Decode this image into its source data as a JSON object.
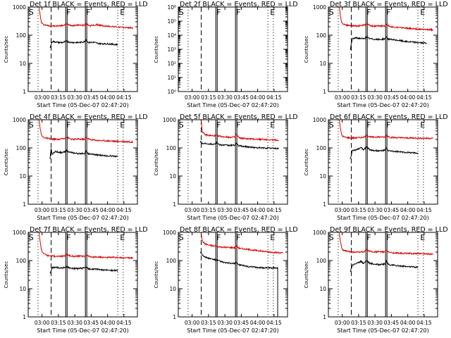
{
  "colors": {
    "events": "#000000",
    "lld": "#dd0000",
    "axes": "#000000",
    "background": "#ffffff"
  },
  "common": {
    "ylabel": "Counts/sec",
    "xlabel": "Start Time (05-Dec-07 02:47:20)",
    "xticks": [
      "03:00",
      "03:15",
      "03:30",
      "03:45",
      "04:00",
      "04:15"
    ],
    "xtick_minutes": [
      12.67,
      27.67,
      42.67,
      57.67,
      72.67,
      87.67
    ],
    "xlim_minutes": [
      0,
      100
    ],
    "yticks_standard": [
      "1",
      "10",
      "100",
      "1000"
    ],
    "marker_letters": {
      "start": "S",
      "flag": "F",
      "end": "E"
    }
  },
  "chart_data": [
    {
      "type": "line",
      "title": "Det 1f BLACK = Events, RED = LLD",
      "yscale": "log",
      "ylim": [
        1,
        1000
      ],
      "markers": {
        "S": 0.5,
        "dotted": [
          9,
          82,
          87
        ],
        "dashed": 21,
        "F": [
          35,
          53
        ],
        "E": 84
      },
      "series": [
        {
          "color": "red",
          "x": [
            10,
            11,
            12,
            13,
            15,
            17,
            20,
            25,
            33,
            35,
            40,
            47,
            52,
            53,
            57,
            63,
            70,
            77,
            82,
            85,
            88,
            92,
            96
          ],
          "y": [
            1000,
            500,
            290,
            250,
            235,
            225,
            215,
            210,
            225,
            250,
            220,
            230,
            225,
            255,
            215,
            235,
            210,
            205,
            195,
            190,
            188,
            185,
            183
          ]
        },
        {
          "color": "black",
          "x": [
            20,
            22,
            25,
            28,
            32,
            35,
            38,
            42,
            47,
            52,
            53,
            55,
            60,
            65,
            70,
            75,
            82
          ],
          "y": [
            35,
            60,
            58,
            55,
            55,
            62,
            56,
            55,
            55,
            60,
            70,
            55,
            56,
            50,
            50,
            49,
            46
          ]
        }
      ]
    },
    {
      "type": "line",
      "title": "Det 2f BLACK = Events, RED = LLD",
      "yscale": "log",
      "ylim": [
        1,
        1000000
      ],
      "yticks": [
        "10⁰",
        "10¹",
        "10²",
        "10³",
        "10⁴",
        "10⁵",
        "10⁶"
      ],
      "markers": {
        "S": 0.5,
        "dotted": [
          9,
          82,
          87
        ],
        "dashed": 21,
        "F": [
          35,
          53
        ],
        "E": 84
      },
      "series": []
    },
    {
      "type": "line",
      "title": "Det 3f BLACK = Events, RED = LLD",
      "yscale": "log",
      "ylim": [
        1,
        1000
      ],
      "markers": {
        "S": 0.5,
        "dotted": [
          9,
          82,
          87
        ],
        "dashed": 21,
        "F": [
          35,
          53
        ],
        "E": 84
      },
      "series": [
        {
          "color": "red",
          "x": [
            10,
            11,
            12,
            13,
            15,
            18,
            22,
            28,
            33,
            35,
            40,
            47,
            52,
            53,
            57,
            63,
            70,
            77,
            82,
            87,
            92,
            96
          ],
          "y": [
            1000,
            500,
            300,
            260,
            240,
            225,
            215,
            215,
            230,
            250,
            210,
            215,
            210,
            245,
            200,
            190,
            180,
            170,
            165,
            160,
            158,
            155
          ]
        },
        {
          "color": "black",
          "x": [
            20,
            22,
            25,
            28,
            32,
            35,
            38,
            42,
            47,
            52,
            53,
            55,
            60,
            65,
            70,
            75,
            82,
            90
          ],
          "y": [
            30,
            75,
            80,
            78,
            75,
            85,
            75,
            72,
            70,
            75,
            90,
            72,
            68,
            65,
            60,
            58,
            55,
            52
          ]
        }
      ]
    },
    {
      "type": "line",
      "title": "Det 4f BLACK = Events, RED = LLD",
      "yscale": "log",
      "ylim": [
        1,
        1000
      ],
      "markers": {
        "S": 0.5,
        "dotted": [
          9,
          82,
          87
        ],
        "dashed": 21,
        "F": [
          35,
          53
        ],
        "E": 84
      },
      "series": [
        {
          "color": "red",
          "x": [
            10,
            11,
            12,
            13,
            15,
            18,
            22,
            28,
            33,
            35,
            40,
            47,
            52,
            53,
            57,
            63,
            70,
            77,
            82,
            87,
            92,
            96
          ],
          "y": [
            1000,
            500,
            300,
            250,
            230,
            215,
            205,
            200,
            215,
            240,
            200,
            205,
            200,
            235,
            195,
            185,
            180,
            175,
            170,
            168,
            165,
            163
          ]
        },
        {
          "color": "black",
          "x": [
            20,
            21,
            22,
            25,
            28,
            32,
            35,
            38,
            42,
            47,
            52,
            53,
            55,
            60,
            65,
            70,
            75,
            82
          ],
          "y": [
            40,
            90,
            60,
            75,
            70,
            68,
            80,
            70,
            65,
            62,
            65,
            75,
            62,
            58,
            55,
            53,
            52,
            50
          ]
        }
      ]
    },
    {
      "type": "line",
      "title": "Det 5f BLACK = Events, RED = LLD",
      "yscale": "log",
      "ylim": [
        1,
        1000
      ],
      "markers": {
        "S": 0.5,
        "dotted": [
          9,
          82,
          87
        ],
        "dashed": 21,
        "F": [
          35,
          53
        ],
        "E": 84
      },
      "series": [
        {
          "color": "red",
          "x": [
            21,
            22,
            24,
            27,
            32,
            35,
            40,
            47,
            52,
            53,
            56,
            63,
            70,
            77,
            82,
            87,
            92
          ],
          "y": [
            900,
            380,
            300,
            280,
            265,
            275,
            250,
            240,
            240,
            300,
            225,
            210,
            205,
            200,
            195,
            190,
            188
          ]
        },
        {
          "color": "black",
          "x": [
            20,
            21,
            22,
            25,
            28,
            32,
            35,
            38,
            42,
            47,
            52,
            53,
            55,
            60,
            65,
            70,
            75,
            82,
            87,
            92
          ],
          "y": [
            160,
            170,
            140,
            145,
            140,
            135,
            150,
            130,
            125,
            122,
            125,
            145,
            120,
            112,
            108,
            102,
            100,
            98,
            97,
            95
          ]
        }
      ]
    },
    {
      "type": "line",
      "title": "Det 6f BLACK = Events, RED = LLD",
      "yscale": "log",
      "ylim": [
        1,
        1000
      ],
      "markers": {
        "S": 0.5,
        "dotted": [
          9,
          82,
          87
        ],
        "dashed": 21,
        "F": [
          35,
          53
        ],
        "E": 84
      },
      "series": [
        {
          "color": "red",
          "x": [
            10,
            11,
            12,
            13,
            15,
            18,
            22,
            28,
            33,
            35,
            40,
            47,
            52,
            53,
            57,
            63,
            70,
            77,
            82,
            87,
            92,
            96
          ],
          "y": [
            1000,
            500,
            300,
            260,
            240,
            230,
            225,
            230,
            240,
            270,
            240,
            245,
            240,
            275,
            235,
            230,
            225,
            225,
            222,
            220,
            220,
            220
          ]
        },
        {
          "color": "black",
          "x": [
            20,
            22,
            25,
            28,
            30,
            32,
            35,
            38,
            42,
            47,
            52,
            53,
            55,
            60,
            65,
            70,
            75,
            82
          ],
          "y": [
            40,
            80,
            85,
            95,
            100,
            85,
            110,
            85,
            80,
            78,
            82,
            100,
            78,
            75,
            72,
            70,
            68,
            65
          ]
        }
      ]
    },
    {
      "type": "line",
      "title": "Det 7f BLACK = Events, RED = LLD",
      "yscale": "log",
      "ylim": [
        1,
        1000
      ],
      "markers": {
        "S": 0.5,
        "dotted": [
          9,
          82,
          87
        ],
        "dashed": 21,
        "F": [
          35,
          53
        ],
        "E": 84
      },
      "series": [
        {
          "color": "red",
          "x": [
            10,
            11,
            12,
            13,
            15,
            18,
            22,
            28,
            33,
            35,
            40,
            47,
            52,
            53,
            57,
            63,
            70,
            77,
            82,
            87,
            92,
            96
          ],
          "y": [
            1000,
            450,
            260,
            200,
            170,
            150,
            145,
            140,
            145,
            165,
            140,
            145,
            140,
            160,
            135,
            132,
            130,
            128,
            127,
            125,
            125,
            125
          ]
        },
        {
          "color": "black",
          "x": [
            20,
            22,
            25,
            28,
            32,
            35,
            38,
            42,
            47,
            52,
            53,
            55,
            60,
            65,
            70,
            75,
            82
          ],
          "y": [
            35,
            55,
            58,
            55,
            55,
            60,
            55,
            52,
            52,
            55,
            60,
            50,
            50,
            48,
            46,
            45,
            44
          ]
        }
      ]
    },
    {
      "type": "line",
      "title": "Det 8f BLACK = Events, RED = LLD",
      "yscale": "log",
      "ylim": [
        1,
        1000
      ],
      "markers": {
        "S": 0.5,
        "dotted": [
          9,
          82,
          87
        ],
        "dashed": 21,
        "F": [
          35,
          53
        ],
        "E": 84
      },
      "series": [
        {
          "color": "red",
          "x": [
            21,
            22,
            24,
            27,
            32,
            35,
            40,
            47,
            52,
            53,
            56,
            63,
            70,
            77,
            82,
            87,
            92,
            96
          ],
          "y": [
            900,
            500,
            400,
            360,
            330,
            320,
            300,
            290,
            285,
            330,
            270,
            250,
            230,
            215,
            205,
            195,
            190,
            185
          ]
        },
        {
          "color": "black",
          "x": [
            20,
            21,
            22,
            25,
            28,
            32,
            35,
            38,
            42,
            47,
            52,
            53,
            55,
            60,
            65,
            70,
            75,
            82,
            87,
            91
          ],
          "y": [
            200,
            190,
            160,
            130,
            120,
            110,
            105,
            95,
            85,
            80,
            78,
            90,
            72,
            65,
            60,
            58,
            56,
            55,
            55,
            55
          ]
        }
      ]
    },
    {
      "type": "line",
      "title": "Det 9f BLACK = Events, RED = LLD",
      "yscale": "log",
      "ylim": [
        1,
        1000
      ],
      "markers": {
        "S": 0.5,
        "dotted": [
          9,
          82,
          87
        ],
        "dashed": 21,
        "F": [
          35,
          53
        ],
        "E": 84
      },
      "series": [
        {
          "color": "red",
          "x": [
            10,
            11,
            12,
            13,
            15,
            18,
            22,
            28,
            33,
            35,
            40,
            47,
            52,
            53,
            57,
            63,
            70,
            77,
            82,
            87,
            92,
            96
          ],
          "y": [
            1000,
            500,
            300,
            240,
            220,
            210,
            200,
            200,
            205,
            240,
            200,
            205,
            200,
            230,
            190,
            185,
            180,
            178,
            175,
            173,
            172,
            170
          ]
        },
        {
          "color": "black",
          "x": [
            20,
            22,
            25,
            28,
            30,
            32,
            35,
            38,
            42,
            47,
            52,
            53,
            55,
            60,
            65,
            70,
            75,
            82
          ],
          "y": [
            40,
            70,
            78,
            85,
            95,
            80,
            100,
            80,
            75,
            72,
            75,
            95,
            72,
            68,
            65,
            62,
            60,
            58
          ]
        }
      ]
    }
  ]
}
